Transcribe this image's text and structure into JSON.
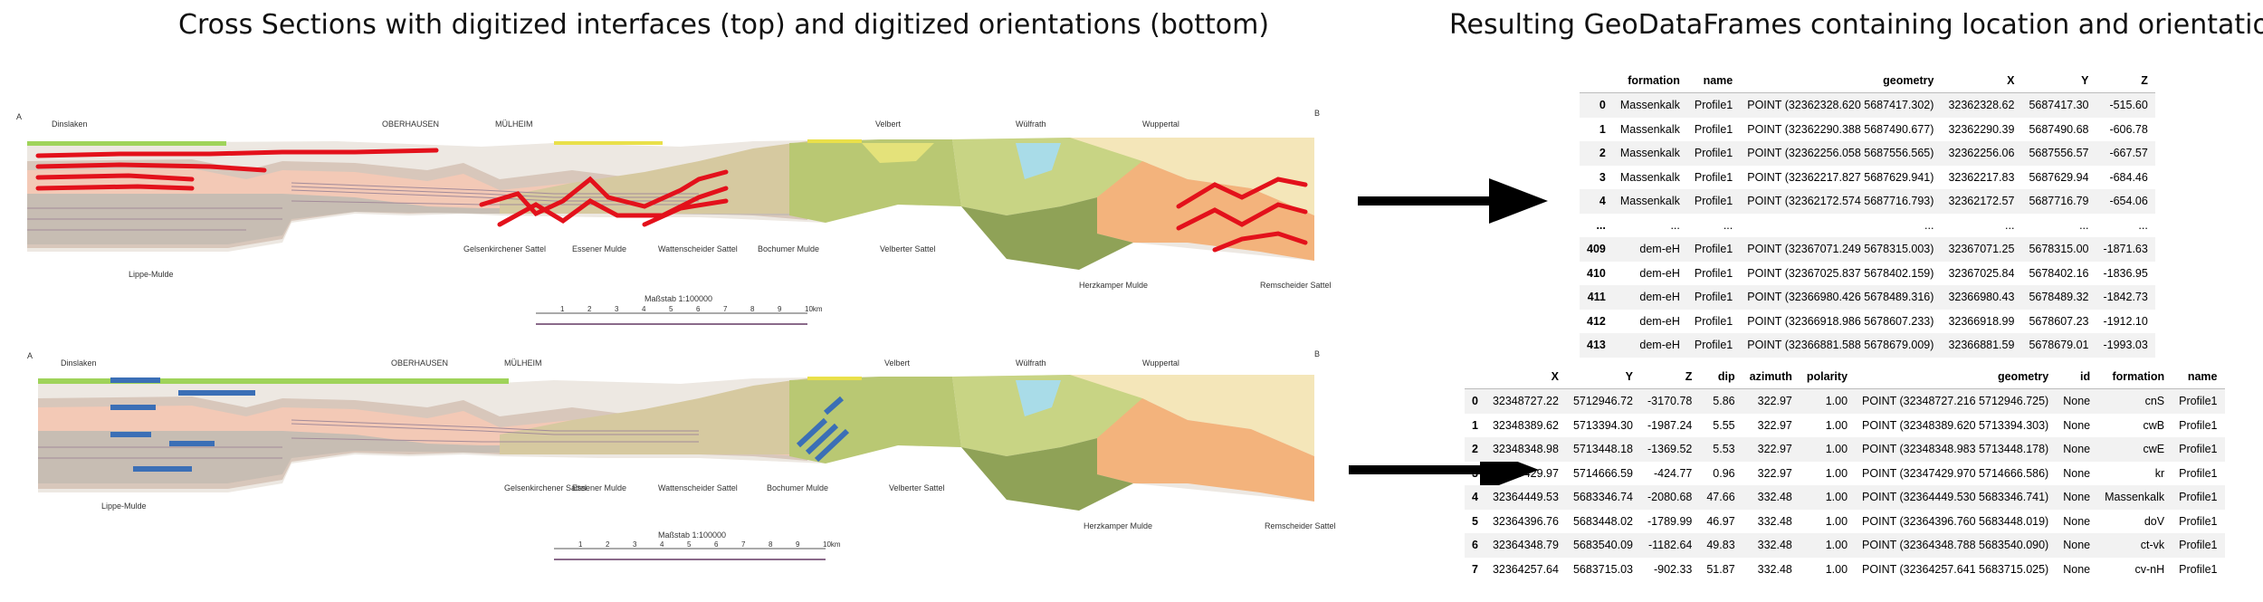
{
  "headings": {
    "left": "Cross Sections with digitized interfaces (top) and digitized orientations (bottom)",
    "right": "Resulting GeoDataFrames containing location and orientation data"
  },
  "section_top": {
    "end_left": "A",
    "end_right": "B",
    "places": [
      "Dinslaken",
      "OBERHAUSEN",
      "MÜLHEIM",
      "Velbert",
      "Wülfrath",
      "Wuppertal"
    ],
    "structures": [
      "Lippe-Mulde",
      "Gelsenkirchener Sattel",
      "Essener Mulde",
      "Wattenscheider Sattel",
      "Bochumer Mulde",
      "Velberter Sattel",
      "Herzkamper Mulde",
      "Remscheider Sattel"
    ],
    "scale_label": "Maßstab 1:100000",
    "scale_ticks": [
      "1",
      "2",
      "3",
      "4",
      "5",
      "6",
      "7",
      "8",
      "9",
      "10km"
    ],
    "interface_color": "#e3111b"
  },
  "section_bottom": {
    "end_left": "A",
    "end_right": "B",
    "places": [
      "Dinslaken",
      "OBERHAUSEN",
      "MÜLHEIM",
      "Velbert",
      "Wülfrath",
      "Wuppertal"
    ],
    "structures": [
      "Lippe-Mulde",
      "Gelsenkirchener Sattel",
      "Essener Mulde",
      "Wattenscheider Sattel",
      "Bochumer Mulde",
      "Velberter Sattel",
      "Herzkamper Mulde",
      "Remscheider Sattel"
    ],
    "scale_label": "Maßstab 1:100000",
    "scale_ticks": [
      "1",
      "2",
      "3",
      "4",
      "5",
      "6",
      "7",
      "8",
      "9",
      "10km"
    ],
    "orientation_color": "#3b6fb6"
  },
  "interfaces_table": {
    "columns": [
      "",
      "formation",
      "name",
      "geometry",
      "X",
      "Y",
      "Z"
    ],
    "rows": [
      [
        "0",
        "Massenkalk",
        "Profile1",
        "POINT (32362328.620 5687417.302)",
        "32362328.62",
        "5687417.30",
        "-515.60"
      ],
      [
        "1",
        "Massenkalk",
        "Profile1",
        "POINT (32362290.388 5687490.677)",
        "32362290.39",
        "5687490.68",
        "-606.78"
      ],
      [
        "2",
        "Massenkalk",
        "Profile1",
        "POINT (32362256.058 5687556.565)",
        "32362256.06",
        "5687556.57",
        "-667.57"
      ],
      [
        "3",
        "Massenkalk",
        "Profile1",
        "POINT (32362217.827 5687629.941)",
        "32362217.83",
        "5687629.94",
        "-684.46"
      ],
      [
        "4",
        "Massenkalk",
        "Profile1",
        "POINT (32362172.574 5687716.793)",
        "32362172.57",
        "5687716.79",
        "-654.06"
      ],
      [
        "...",
        "...",
        "...",
        "...",
        "...",
        "...",
        "..."
      ],
      [
        "409",
        "dem-eH",
        "Profile1",
        "POINT (32367071.249 5678315.003)",
        "32367071.25",
        "5678315.00",
        "-1871.63"
      ],
      [
        "410",
        "dem-eH",
        "Profile1",
        "POINT (32367025.837 5678402.159)",
        "32367025.84",
        "5678402.16",
        "-1836.95"
      ],
      [
        "411",
        "dem-eH",
        "Profile1",
        "POINT (32366980.426 5678489.316)",
        "32366980.43",
        "5678489.32",
        "-1842.73"
      ],
      [
        "412",
        "dem-eH",
        "Profile1",
        "POINT (32366918.986 5678607.233)",
        "32366918.99",
        "5678607.23",
        "-1912.10"
      ],
      [
        "413",
        "dem-eH",
        "Profile1",
        "POINT (32366881.588 5678679.009)",
        "32366881.59",
        "5678679.01",
        "-1993.03"
      ]
    ]
  },
  "orientations_table": {
    "columns": [
      "",
      "X",
      "Y",
      "Z",
      "dip",
      "azimuth",
      "polarity",
      "geometry",
      "id",
      "formation",
      "name"
    ],
    "rows": [
      [
        "0",
        "32348727.22",
        "5712946.72",
        "-3170.78",
        "5.86",
        "322.97",
        "1.00",
        "POINT (32348727.216 5712946.725)",
        "None",
        "cnS",
        "Profile1"
      ],
      [
        "1",
        "32348389.62",
        "5713394.30",
        "-1987.24",
        "5.55",
        "322.97",
        "1.00",
        "POINT (32348389.620 5713394.303)",
        "None",
        "cwB",
        "Profile1"
      ],
      [
        "2",
        "32348348.98",
        "5713448.18",
        "-1369.52",
        "5.53",
        "322.97",
        "1.00",
        "POINT (32348348.983 5713448.178)",
        "None",
        "cwE",
        "Profile1"
      ],
      [
        "3",
        "32347429.97",
        "5714666.59",
        "-424.77",
        "0.96",
        "322.97",
        "1.00",
        "POINT (32347429.970 5714666.586)",
        "None",
        "kr",
        "Profile1"
      ],
      [
        "4",
        "32364449.53",
        "5683346.74",
        "-2080.68",
        "47.66",
        "332.48",
        "1.00",
        "POINT (32364449.530 5683346.741)",
        "None",
        "Massenkalk",
        "Profile1"
      ],
      [
        "5",
        "32364396.76",
        "5683448.02",
        "-1789.99",
        "46.97",
        "332.48",
        "1.00",
        "POINT (32364396.760 5683448.019)",
        "None",
        "doV",
        "Profile1"
      ],
      [
        "6",
        "32364348.79",
        "5683540.09",
        "-1182.64",
        "49.83",
        "332.48",
        "1.00",
        "POINT (32364348.788 5683540.090)",
        "None",
        "ct-vk",
        "Profile1"
      ],
      [
        "7",
        "32364257.64",
        "5683715.03",
        "-902.33",
        "51.87",
        "332.48",
        "1.00",
        "POINT (32364257.641 5683715.025)",
        "None",
        "cv-nH",
        "Profile1"
      ]
    ]
  }
}
